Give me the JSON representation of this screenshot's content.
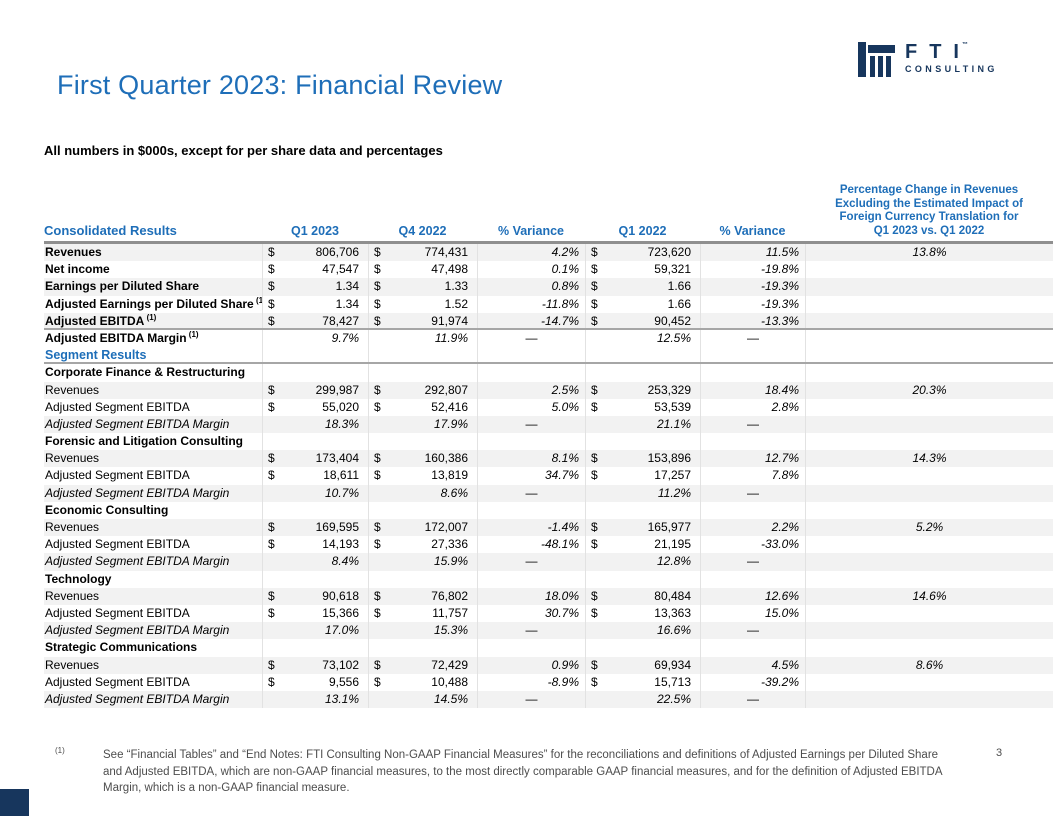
{
  "page": {
    "title": "First Quarter 2023: Financial Review",
    "subtitle": "All numbers in $000s, except for per share data and percentages",
    "page_number": "3"
  },
  "logo": {
    "brand": "FTI",
    "trademark": "™",
    "sub_brand": "CONSULTING"
  },
  "colors": {
    "accent_blue": "#1E6EB8",
    "brand_navy": "#17365D",
    "row_stripe": "#F2F2F2",
    "rule_gray": "#A6A6A6"
  },
  "table": {
    "headers": {
      "label": "Consolidated Results",
      "q1_2023": "Q1 2023",
      "q4_2022": "Q4 2022",
      "variance1": "% Variance",
      "q1_2022": "Q1 2022",
      "variance2": "% Variance",
      "fx": "Percentage Change in Revenues\nExcluding the Estimated Impact of\nForeign Currency Translation for\nQ1 2023 vs. Q1 2022"
    },
    "rows": [
      {
        "label": "Revenues",
        "cls": "b",
        "dollar": true,
        "stripe": true,
        "v1": "806,706",
        "v2": "774,431",
        "var1": "4.2%",
        "v3": "723,620",
        "var2": "11.5%",
        "fx": "13.8%"
      },
      {
        "label": "Net income",
        "cls": "b",
        "dollar": true,
        "stripe": false,
        "v1": "47,547",
        "v2": "47,498",
        "var1": "0.1%",
        "v3": "59,321",
        "var2": "-19.8%",
        "fx": ""
      },
      {
        "label": "Earnings per Diluted Share",
        "cls": "b",
        "dollar": true,
        "stripe": true,
        "v1": "1.34",
        "v2": "1.33",
        "var1": "0.8%",
        "v3": "1.66",
        "var2": "-19.3%",
        "fx": ""
      },
      {
        "label": "Adjusted Earnings per Diluted Share",
        "sup": "(1)",
        "cls": "b",
        "dollar": true,
        "stripe": false,
        "v1": "1.34",
        "v2": "1.52",
        "var1": "-11.8%",
        "v3": "1.66",
        "var2": "-19.3%",
        "fx": ""
      },
      {
        "label": "Adjusted EBITDA",
        "sup": "(1)",
        "cls": "b",
        "dollar": true,
        "stripe": true,
        "hr": true,
        "v1": "78,427",
        "v2": "91,974",
        "var1": "-14.7%",
        "v3": "90,452",
        "var2": "-13.3%",
        "fx": ""
      },
      {
        "label": "Adjusted EBITDA Margin",
        "sup": "(1)",
        "cls": "b",
        "dollar": false,
        "iv": true,
        "stripe": false,
        "v1": "9.7%",
        "v2": "11.9%",
        "var1": "—",
        "v3": "12.5%",
        "var2": "—",
        "fx": ""
      },
      {
        "label": "Segment Results",
        "cls": "s",
        "stripe": false,
        "hr": true
      },
      {
        "label": "Corporate Finance & Restructuring",
        "cls": "h",
        "stripe": false
      },
      {
        "label": "Revenues",
        "cls": "r",
        "dollar": true,
        "stripe": true,
        "v1": "299,987",
        "v2": "292,807",
        "var1": "2.5%",
        "v3": "253,329",
        "var2": "18.4%",
        "fx": "20.3%"
      },
      {
        "label": "Adjusted Segment EBITDA",
        "cls": "r",
        "dollar": true,
        "stripe": false,
        "v1": "55,020",
        "v2": "52,416",
        "var1": "5.0%",
        "v3": "53,539",
        "var2": "2.8%",
        "fx": ""
      },
      {
        "label": "Adjusted Segment EBITDA Margin",
        "cls": "i",
        "dollar": false,
        "iv": true,
        "stripe": true,
        "v1": "18.3%",
        "v2": "17.9%",
        "var1": "—",
        "v3": "21.1%",
        "var2": "—",
        "fx": ""
      },
      {
        "label": "Forensic and Litigation Consulting",
        "cls": "h",
        "stripe": false
      },
      {
        "label": "Revenues",
        "cls": "r",
        "dollar": true,
        "stripe": true,
        "v1": "173,404",
        "v2": "160,386",
        "var1": "8.1%",
        "v3": "153,896",
        "var2": "12.7%",
        "fx": "14.3%"
      },
      {
        "label": "Adjusted Segment EBITDA",
        "cls": "r",
        "dollar": true,
        "stripe": false,
        "v1": "18,611",
        "v2": "13,819",
        "var1": "34.7%",
        "v3": "17,257",
        "var2": "7.8%",
        "fx": ""
      },
      {
        "label": "Adjusted Segment EBITDA Margin",
        "cls": "i",
        "dollar": false,
        "iv": true,
        "stripe": true,
        "v1": "10.7%",
        "v2": "8.6%",
        "var1": "—",
        "v3": "11.2%",
        "var2": "—",
        "fx": ""
      },
      {
        "label": "Economic Consulting",
        "cls": "h",
        "stripe": false
      },
      {
        "label": "Revenues",
        "cls": "r",
        "dollar": true,
        "stripe": true,
        "v1": "169,595",
        "v2": "172,007",
        "var1": "-1.4%",
        "v3": "165,977",
        "var2": "2.2%",
        "fx": "5.2%"
      },
      {
        "label": "Adjusted Segment EBITDA",
        "cls": "r",
        "dollar": true,
        "stripe": false,
        "v1": "14,193",
        "v2": "27,336",
        "var1": "-48.1%",
        "v3": "21,195",
        "var2": "-33.0%",
        "fx": ""
      },
      {
        "label": "Adjusted Segment EBITDA Margin",
        "cls": "i",
        "dollar": false,
        "iv": true,
        "stripe": true,
        "v1": "8.4%",
        "v2": "15.9%",
        "var1": "—",
        "v3": "12.8%",
        "var2": "—",
        "fx": ""
      },
      {
        "label": "Technology",
        "cls": "h",
        "stripe": false
      },
      {
        "label": "Revenues",
        "cls": "r",
        "dollar": true,
        "stripe": true,
        "v1": "90,618",
        "v2": "76,802",
        "var1": "18.0%",
        "v3": "80,484",
        "var2": "12.6%",
        "fx": "14.6%"
      },
      {
        "label": "Adjusted Segment EBITDA",
        "cls": "r",
        "dollar": true,
        "stripe": false,
        "v1": "15,366",
        "v2": "11,757",
        "var1": "30.7%",
        "v3": "13,363",
        "var2": "15.0%",
        "fx": ""
      },
      {
        "label": "Adjusted Segment EBITDA Margin",
        "cls": "i",
        "dollar": false,
        "iv": true,
        "stripe": true,
        "v1": "17.0%",
        "v2": "15.3%",
        "var1": "—",
        "v3": "16.6%",
        "var2": "—",
        "fx": ""
      },
      {
        "label": "Strategic Communications",
        "cls": "h",
        "stripe": false
      },
      {
        "label": "Revenues",
        "cls": "r",
        "dollar": true,
        "stripe": true,
        "v1": "73,102",
        "v2": "72,429",
        "var1": "0.9%",
        "v3": "69,934",
        "var2": "4.5%",
        "fx": "8.6%"
      },
      {
        "label": "Adjusted Segment EBITDA",
        "cls": "r",
        "dollar": true,
        "stripe": false,
        "v1": "9,556",
        "v2": "10,488",
        "var1": "-8.9%",
        "v3": "15,713",
        "var2": "-39.2%",
        "fx": ""
      },
      {
        "label": "Adjusted Segment EBITDA Margin",
        "cls": "i",
        "dollar": false,
        "iv": true,
        "stripe": true,
        "v1": "13.1%",
        "v2": "14.5%",
        "var1": "—",
        "v3": "22.5%",
        "var2": "—",
        "fx": ""
      }
    ]
  },
  "footnote": {
    "marker": "(1)",
    "text": "See “Financial Tables” and “End Notes: FTI Consulting Non-GAAP Financial Measures” for the reconciliations and definitions of Adjusted Earnings per Diluted Share and Adjusted EBITDA, which are non-GAAP financial measures, to the most directly comparable GAAP financial measures, and for the definition of Adjusted EBITDA Margin, which is a non-GAAP financial measure."
  }
}
